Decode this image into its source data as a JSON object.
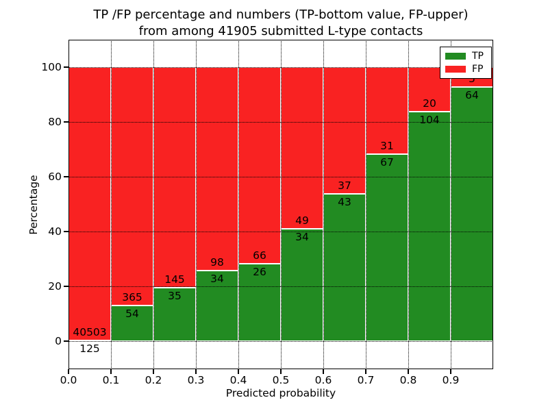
{
  "title": {
    "line1": "TP /FP percentage and numbers (TP-bottom value, FP-upper)",
    "line2": "from among 41905 submitted L-type contacts"
  },
  "axes": {
    "ylabel": "Percentage",
    "xlabel": "Predicted probability",
    "yticks": [
      "0",
      "20",
      "40",
      "60",
      "80",
      "100"
    ],
    "xticks": [
      "0.0",
      "0.1",
      "0.2",
      "0.3",
      "0.4",
      "0.5",
      "0.6",
      "0.7",
      "0.8",
      "0.9"
    ]
  },
  "legend": {
    "items": [
      {
        "label": "TP",
        "color": "#228b22"
      },
      {
        "label": "FP",
        "color": "#f92222"
      }
    ],
    "position": "upper right"
  },
  "chart_data": {
    "type": "bar",
    "stacked": true,
    "normalized": "percent",
    "title": "TP /FP percentage and numbers (TP-bottom value, FP-upper) from among 41905 submitted L-type contacts",
    "xlabel": "Predicted probability",
    "ylabel": "Percentage",
    "xlim": [
      0.0,
      1.0
    ],
    "ylim": [
      -10.5,
      110.5
    ],
    "grid": true,
    "legend_position": "upper right",
    "total_contacts": 41905,
    "colors": {
      "tp": "#228b22",
      "fp": "#f92222"
    },
    "bins": [
      {
        "x0": 0.0,
        "x1": 0.1,
        "tp": 125,
        "fp": 40503
      },
      {
        "x0": 0.1,
        "x1": 0.2,
        "tp": 54,
        "fp": 365
      },
      {
        "x0": 0.2,
        "x1": 0.3,
        "tp": 35,
        "fp": 145
      },
      {
        "x0": 0.3,
        "x1": 0.4,
        "tp": 34,
        "fp": 98
      },
      {
        "x0": 0.4,
        "x1": 0.5,
        "tp": 26,
        "fp": 66
      },
      {
        "x0": 0.5,
        "x1": 0.6,
        "tp": 34,
        "fp": 49
      },
      {
        "x0": 0.6,
        "x1": 0.7,
        "tp": 43,
        "fp": 37
      },
      {
        "x0": 0.7,
        "x1": 0.8,
        "tp": 67,
        "fp": 31
      },
      {
        "x0": 0.8,
        "x1": 0.9,
        "tp": 104,
        "fp": 20
      },
      {
        "x0": 0.9,
        "x1": 1.0,
        "tp": 64,
        "fp": 5
      }
    ]
  }
}
